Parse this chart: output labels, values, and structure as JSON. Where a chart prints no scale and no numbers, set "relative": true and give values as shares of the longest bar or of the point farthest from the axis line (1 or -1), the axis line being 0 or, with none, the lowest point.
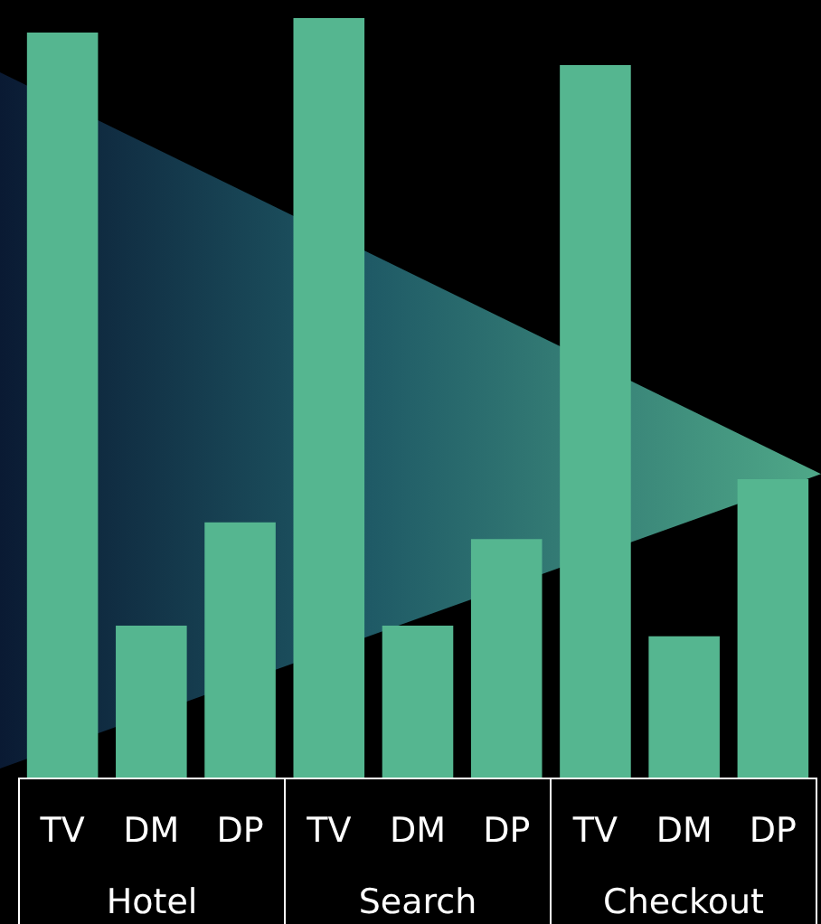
{
  "chart_data": {
    "type": "bar",
    "relative": true,
    "categories": [
      "TV",
      "DM",
      "DP",
      "TV",
      "DM",
      "DP",
      "TV",
      "DM",
      "DP"
    ],
    "values": [
      0.981,
      0.2,
      0.336,
      1,
      0.2,
      0.314,
      0.938,
      0.186,
      0.393
    ],
    "color": "#55b690",
    "annotations": [
      "Hotel",
      "Search",
      "Checkout"
    ]
  }
}
